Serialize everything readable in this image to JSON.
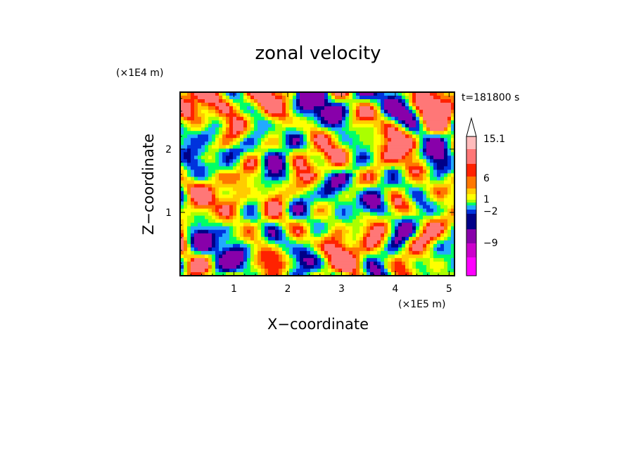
{
  "chart_data": {
    "type": "heatmap",
    "title": "zonal velocity",
    "xlabel": "X−coordinate",
    "ylabel": "Z−coordinate",
    "x_scale_label": "(×1E5 m)",
    "y_scale_label": "(×1E4 m)",
    "time_label": "t=181800 s",
    "x_ticks": [
      "1",
      "2",
      "3",
      "4",
      "5"
    ],
    "x_tick_values": [
      1,
      2,
      3,
      4,
      5
    ],
    "y_ticks": [
      "1",
      "2"
    ],
    "y_tick_values": [
      1,
      2
    ],
    "xlim": [
      0,
      5.1
    ],
    "ylim": [
      0,
      2.9
    ],
    "colorbar": {
      "labels": [
        "15.1",
        "6",
        "1",
        "−2",
        "−9"
      ],
      "colors": [
        "#ff00ff",
        "#cc00cc",
        "#8800aa",
        "#000088",
        "#0033dd",
        "#22aaff",
        "#00ff66",
        "#aaff00",
        "#ffff00",
        "#ffcc00",
        "#ff7700",
        "#ff2200",
        "#ff7777",
        "#ffbbbb",
        "#ffffff"
      ]
    }
  }
}
